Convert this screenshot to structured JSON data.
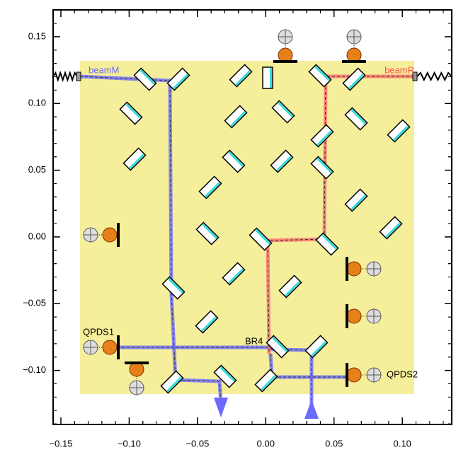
{
  "chart_data": {
    "type": "optical-layout",
    "xlim": [
      -0.1557,
      0.1362
    ],
    "ylim": [
      -0.1405,
      0.1701
    ],
    "xticks": [
      {
        "value": -0.15,
        "label": "−0.15"
      },
      {
        "value": -0.1,
        "label": "−0.10"
      },
      {
        "value": -0.05,
        "label": "−0.05"
      },
      {
        "value": 0,
        "label": "0.00"
      },
      {
        "value": 0.05,
        "label": "0.05"
      },
      {
        "value": 0.1,
        "label": "0.10"
      }
    ],
    "yticks": [
      {
        "value": -0.1,
        "label": "−0.10"
      },
      {
        "value": -0.05,
        "label": "−0.05"
      },
      {
        "value": 0,
        "label": "0.00"
      },
      {
        "value": 0.05,
        "label": "0.05"
      },
      {
        "value": 0.1,
        "label": "0.10"
      },
      {
        "value": 0.15,
        "label": "0.15"
      }
    ],
    "labels": [
      "beamM",
      "beamR",
      "QPDS1",
      "QPDS2",
      "BR4"
    ]
  }
}
